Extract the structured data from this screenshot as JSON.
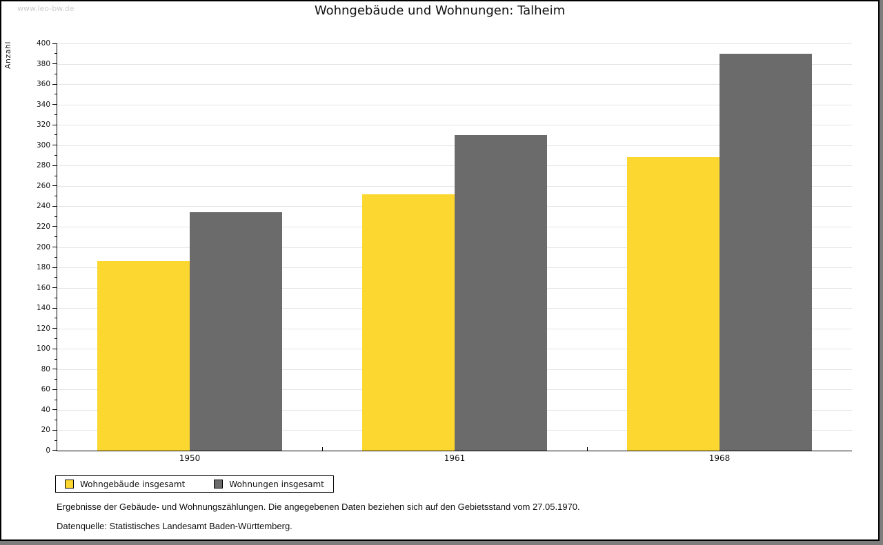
{
  "watermark": "www.leo-bw.de",
  "title": "Wohngebäude und Wohnungen: Talheim",
  "footnotes": [
    "Ergebnisse der Gebäude- und Wohnungszählungen. Die angegebenen Daten beziehen sich auf den Gebietsstand vom 27.05.1970.",
    "Datenquelle: Statistisches Landesamt Baden-Württemberg."
  ],
  "chart_data": {
    "type": "bar",
    "title": "Wohngebäude und Wohnungen: Talheim",
    "categories": [
      "1950",
      "1961",
      "1968"
    ],
    "series": [
      {
        "name": "Wohngebäude insgesamt",
        "color": "#fcd72f",
        "values": [
          186,
          252,
          288
        ]
      },
      {
        "name": "Wohnungen insgesamt",
        "color": "#6b6b6b",
        "values": [
          234,
          310,
          390
        ]
      }
    ],
    "xlabel": "",
    "ylabel": "Anzahl",
    "ylim": [
      0,
      400
    ],
    "ytick_step": 20,
    "ytick_minor_step": 10,
    "grid": true,
    "gridline_color": "#e4e4e4",
    "legend_position": "bottom-left"
  }
}
